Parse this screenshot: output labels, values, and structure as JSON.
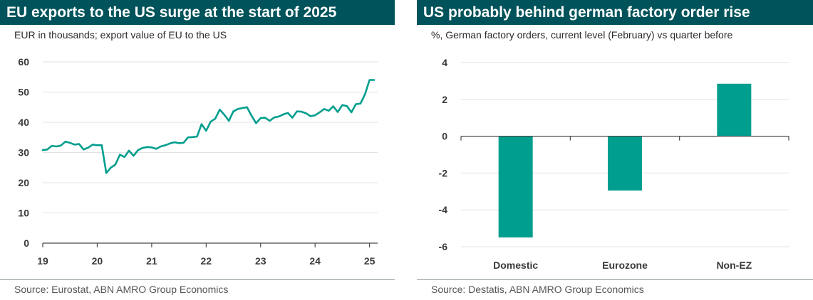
{
  "charts": [
    {
      "title": "EU exports to the US surge at the start of 2025",
      "subtitle": "EUR in thousands; export value of EU to the US",
      "source": "Source: Eurostat, ABN AMRO Group Economics",
      "color": "#009e8e"
    },
    {
      "title": "US probably behind german factory order rise",
      "subtitle": "%, German factory orders, current level (February) vs quarter before",
      "source": "Source: Destatis, ABN AMRO Group Economics",
      "color": "#009e8e"
    }
  ],
  "chart_data": [
    {
      "type": "line",
      "title": "EU exports to the US surge at the start of 2025",
      "ylabel": "EUR in thousands",
      "ylim": [
        0,
        60
      ],
      "yticks": [
        0,
        10,
        20,
        30,
        40,
        50,
        60
      ],
      "xlim": [
        "2019-01",
        "2025-02"
      ],
      "xticks": [
        "19",
        "20",
        "21",
        "22",
        "23",
        "24",
        "25"
      ],
      "grid": "horizontal",
      "series": [
        {
          "x": [
            "2019-01",
            "2019-02",
            "2019-03",
            "2019-04",
            "2019-05",
            "2019-06",
            "2019-07",
            "2019-08",
            "2019-09",
            "2019-10",
            "2019-11",
            "2019-12",
            "2020-01",
            "2020-02",
            "2020-03",
            "2020-04",
            "2020-05",
            "2020-06",
            "2020-07",
            "2020-08",
            "2020-09",
            "2020-10",
            "2020-11",
            "2020-12",
            "2021-01",
            "2021-02",
            "2021-03",
            "2021-04",
            "2021-05",
            "2021-06",
            "2021-07",
            "2021-08",
            "2021-09",
            "2021-10",
            "2021-11",
            "2021-12",
            "2022-01",
            "2022-02",
            "2022-03",
            "2022-04",
            "2022-05",
            "2022-06",
            "2022-07",
            "2022-08",
            "2022-09",
            "2022-10",
            "2022-11",
            "2022-12",
            "2023-01",
            "2023-02",
            "2023-03",
            "2023-04",
            "2023-05",
            "2023-06",
            "2023-07",
            "2023-08",
            "2023-09",
            "2023-10",
            "2023-11",
            "2023-12",
            "2024-01",
            "2024-02",
            "2024-03",
            "2024-04",
            "2024-05",
            "2024-06",
            "2024-07",
            "2024-08",
            "2024-09",
            "2024-10",
            "2024-11",
            "2024-12",
            "2025-01",
            "2025-02"
          ],
          "values": [
            30.8,
            31.0,
            32.2,
            32.0,
            32.3,
            33.6,
            33.2,
            32.6,
            32.8,
            31.0,
            31.6,
            32.6,
            32.4,
            32.4,
            23.2,
            25.0,
            26.0,
            29.3,
            28.5,
            30.6,
            28.9,
            30.8,
            31.5,
            31.8,
            31.7,
            31.2,
            32.0,
            32.4,
            33.0,
            33.4,
            33.1,
            33.2,
            35.0,
            35.1,
            35.3,
            39.4,
            37.2,
            40.2,
            41.2,
            44.2,
            42.5,
            40.5,
            43.6,
            44.4,
            44.7,
            45.0,
            42.2,
            39.7,
            41.4,
            41.5,
            40.5,
            41.6,
            41.9,
            42.6,
            43.1,
            41.5,
            43.6,
            43.5,
            43.0,
            42.0,
            42.3,
            43.3,
            44.4,
            43.8,
            45.3,
            43.4,
            45.7,
            45.4,
            43.3,
            46.0,
            46.2,
            49.3,
            54.0,
            54.0
          ]
        }
      ]
    },
    {
      "type": "bar",
      "title": "US probably behind german factory order rise",
      "ylabel": "%, German factory orders, current level (February) vs quarter before",
      "categories": [
        "Domestic",
        "Eurozone",
        "Non-EZ"
      ],
      "values": [
        -5.5,
        -2.95,
        2.85
      ],
      "ylim": [
        -6,
        4
      ],
      "yticks": [
        -6,
        -4,
        -2,
        0,
        2,
        4
      ],
      "grid": "horizontal"
    }
  ]
}
